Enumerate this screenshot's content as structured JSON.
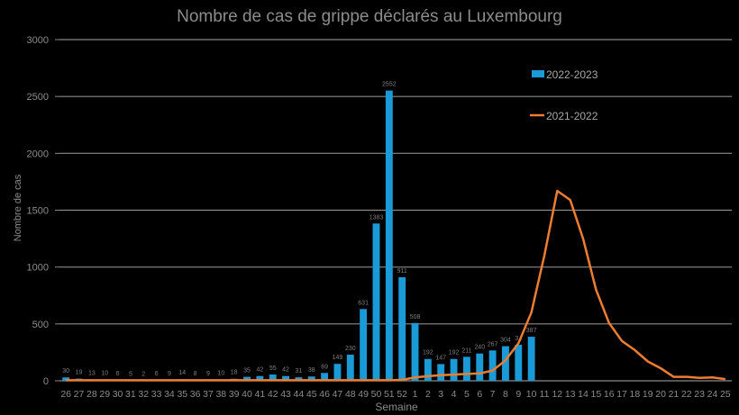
{
  "chart_data": {
    "type": "bar",
    "title": "Nombre de cas de grippe déclarés au Luxembourg",
    "xlabel": "Semaine",
    "ylabel": "Nombre de cas",
    "ylim": [
      0,
      3000
    ],
    "yticks": [
      0,
      500,
      1000,
      1500,
      2000,
      2500,
      3000
    ],
    "grid": true,
    "legend_position": "top-right, inside plot",
    "categories": [
      "26",
      "27",
      "28",
      "29",
      "30",
      "31",
      "32",
      "33",
      "34",
      "35",
      "36",
      "37",
      "38",
      "39",
      "40",
      "41",
      "42",
      "43",
      "44",
      "45",
      "46",
      "47",
      "48",
      "49",
      "50",
      "51",
      "52",
      "1",
      "2",
      "3",
      "4",
      "5",
      "6",
      "7",
      "8",
      "9",
      "10",
      "11",
      "12",
      "13",
      "14",
      "15",
      "16",
      "17",
      "18",
      "19",
      "20",
      "21",
      "22",
      "23",
      "24",
      "25"
    ],
    "series": [
      {
        "name": "2022-2023",
        "type": "bar",
        "color": "#1a9bd7",
        "values": [
          30,
          19,
          13,
          10,
          6,
          5,
          2,
          6,
          9,
          14,
          8,
          9,
          10,
          18,
          35,
          42,
          55,
          42,
          31,
          38,
          69,
          149,
          230,
          631,
          1383,
          2552,
          911,
          508,
          192,
          147,
          192,
          211,
          240,
          267,
          304,
          317,
          387,
          null,
          null,
          null,
          null,
          null,
          null,
          null,
          null,
          null,
          null,
          null,
          null,
          null,
          null,
          null
        ],
        "labels": [
          "30",
          "19",
          "13",
          "10",
          "6",
          "5",
          "2",
          "6",
          "9",
          "14",
          "8",
          "9",
          "10",
          "18",
          "35",
          "42",
          "55",
          "42",
          "31",
          "38",
          "69",
          "149",
          "230",
          "631",
          "1383",
          "2552",
          "911",
          "508",
          "192",
          "147",
          "192",
          "211",
          "240",
          "267",
          "304",
          "3..",
          "387",
          "",
          "",
          "",
          "",
          "",
          "",
          "",
          "",
          "",
          "",
          "",
          "",
          "",
          "",
          ""
        ]
      },
      {
        "name": "2021-2022",
        "type": "line",
        "color": "#ed7d31",
        "values": [
          5,
          5,
          5,
          5,
          5,
          5,
          5,
          5,
          5,
          5,
          5,
          5,
          5,
          5,
          5,
          5,
          5,
          5,
          5,
          5,
          5,
          5,
          5,
          5,
          5,
          5,
          8,
          30,
          40,
          50,
          55,
          60,
          65,
          90,
          180,
          330,
          600,
          1100,
          1670,
          1590,
          1250,
          800,
          510,
          350,
          270,
          170,
          110,
          35,
          35,
          25,
          30,
          15
        ]
      }
    ]
  },
  "legend": {
    "items": [
      {
        "label": "2022-2023",
        "color": "#1a9bd7",
        "shape": "box"
      },
      {
        "label": "2021-2022",
        "color": "#ed7d31",
        "shape": "line"
      }
    ]
  },
  "colors": {
    "background": "#000000",
    "grid": "#8a8a8a",
    "text": "#8c8c8c",
    "bar": "#1a9bd7",
    "line": "#ed7d31"
  }
}
